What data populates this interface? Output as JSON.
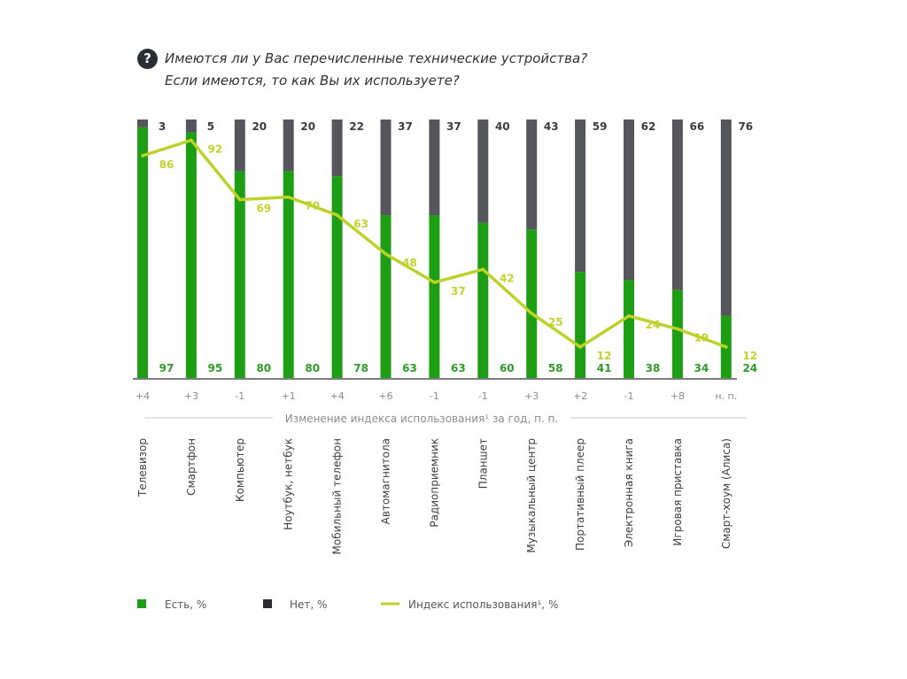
{
  "title": {
    "icon": "question-circle-icon",
    "icon_glyph": "?",
    "line1": "Имеются ли у Вас перечисленные технические устройства?",
    "line2": "Если имеются, то как Вы их используете?"
  },
  "chart_data": {
    "type": "bar",
    "stacked": true,
    "title": "Имеются ли у Вас перечисленные технические устройства? Если имеются, то как Вы их используете?",
    "xlabel": "",
    "ylabel": "",
    "ylim": [
      0,
      100
    ],
    "grid": false,
    "categories": [
      "Телевизор",
      "Смартфон",
      "Компьютер",
      "Ноутбук, нетбук",
      "Мобильный телефон",
      "Автомагнитола",
      "Радиоприемник",
      "Планшет",
      "Музыкальный центр",
      "Портативный плеер",
      "Электронная книга",
      "Игровая приставка",
      "Смарт-хоум (Алиса)"
    ],
    "series": [
      {
        "name": "Есть, %",
        "kind": "bar",
        "color": "#1e9e14",
        "values": [
          97,
          95,
          80,
          80,
          78,
          63,
          63,
          60,
          58,
          41,
          38,
          34,
          24
        ]
      },
      {
        "name": "Нет, %",
        "kind": "bar",
        "color": "#54565b",
        "values": [
          3,
          5,
          20,
          20,
          22,
          37,
          37,
          40,
          43,
          59,
          62,
          66,
          76
        ]
      },
      {
        "name": "Индекс использования¹, %",
        "kind": "line",
        "color": "#bcd12a",
        "values": [
          86,
          92,
          69,
          70,
          63,
          48,
          37,
          42,
          25,
          12,
          24,
          19,
          12
        ]
      }
    ],
    "index_change": [
      "+4",
      "+3",
      "-1",
      "+1",
      "+4",
      "+6",
      "-1",
      "-1",
      "+3",
      "+2",
      "-1",
      "+8",
      "н. п."
    ],
    "index_change_label": "Изменение индекса использования¹ за год, п. п.",
    "legend": {
      "placement": "bottom-left",
      "items": [
        {
          "label": "Есть, %",
          "color": "#1e9e14",
          "shape": "square"
        },
        {
          "label": "Нет, %",
          "color": "#2b2d30",
          "shape": "square"
        },
        {
          "label": "Индекс использования¹, %",
          "color": "#bcd12a",
          "shape": "line"
        }
      ]
    }
  }
}
